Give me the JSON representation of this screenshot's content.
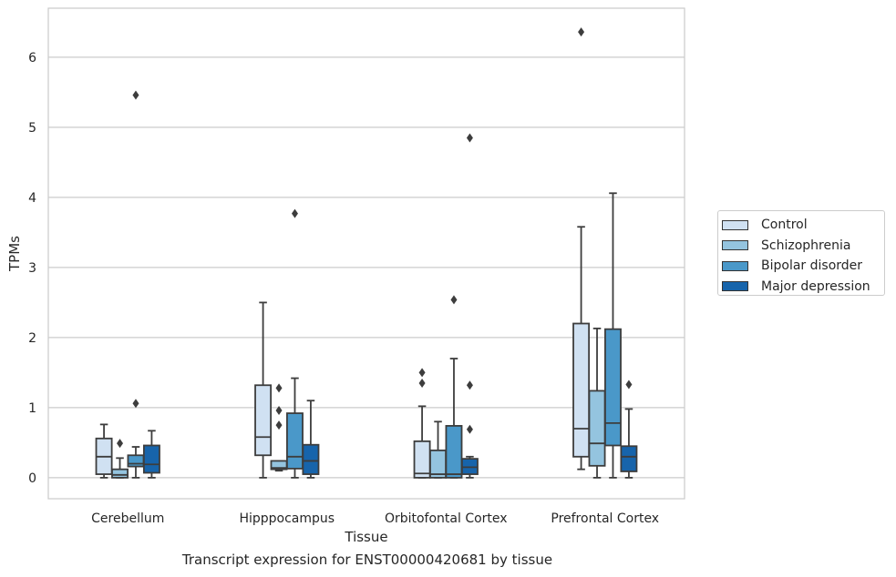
{
  "chart_data": {
    "type": "box",
    "title": "",
    "xlabel": "Tissue",
    "ylabel": "TPMs",
    "caption": "Transcript expression for ENST00000420681 by tissue",
    "categories": [
      "Cerebellum",
      "Hipppocampus",
      "Orbitofontal Cortex",
      "Prefrontal Cortex"
    ],
    "y_ticks": [
      0,
      1,
      2,
      3,
      4,
      5,
      6
    ],
    "ylim": [
      -0.3,
      6.7
    ],
    "grid": "horizontal",
    "legend_position": "right",
    "series": [
      {
        "name": "Control",
        "color": "#d0e1f2",
        "boxes": [
          {
            "whisker_low": 0.0,
            "q1": 0.05,
            "median": 0.3,
            "q3": 0.56,
            "whisker_high": 0.76,
            "outliers": []
          },
          {
            "whisker_low": 0.0,
            "q1": 0.32,
            "median": 0.58,
            "q3": 1.32,
            "whisker_high": 2.5,
            "outliers": []
          },
          {
            "whisker_low": 0.0,
            "q1": 0.0,
            "median": 0.06,
            "q3": 0.52,
            "whisker_high": 1.02,
            "outliers": [
              1.35,
              1.5
            ]
          },
          {
            "whisker_low": 0.12,
            "q1": 0.3,
            "median": 0.7,
            "q3": 2.2,
            "whisker_high": 3.58,
            "outliers": [
              6.36
            ]
          }
        ]
      },
      {
        "name": "Schizophrenia",
        "color": "#94c4df",
        "boxes": [
          {
            "whisker_low": 0.0,
            "q1": 0.0,
            "median": 0.04,
            "q3": 0.12,
            "whisker_high": 0.28,
            "outliers": [
              0.49
            ]
          },
          {
            "whisker_low": 0.1,
            "q1": 0.12,
            "median": 0.14,
            "q3": 0.24,
            "whisker_high": 0.24,
            "outliers": [
              0.75,
              0.96,
              1.28
            ]
          },
          {
            "whisker_low": 0.0,
            "q1": 0.0,
            "median": 0.05,
            "q3": 0.39,
            "whisker_high": 0.8,
            "outliers": []
          },
          {
            "whisker_low": 0.0,
            "q1": 0.17,
            "median": 0.49,
            "q3": 1.24,
            "whisker_high": 2.13,
            "outliers": []
          }
        ]
      },
      {
        "name": "Bipolar disorder",
        "color": "#4a98c9",
        "boxes": [
          {
            "whisker_low": 0.0,
            "q1": 0.16,
            "median": 0.2,
            "q3": 0.32,
            "whisker_high": 0.44,
            "outliers": [
              1.06,
              5.46
            ]
          },
          {
            "whisker_low": 0.0,
            "q1": 0.13,
            "median": 0.3,
            "q3": 0.92,
            "whisker_high": 1.42,
            "outliers": [
              3.77
            ]
          },
          {
            "whisker_low": 0.0,
            "q1": 0.0,
            "median": 0.05,
            "q3": 0.74,
            "whisker_high": 1.7,
            "outliers": [
              2.54
            ]
          },
          {
            "whisker_low": 0.0,
            "q1": 0.46,
            "median": 0.78,
            "q3": 2.12,
            "whisker_high": 4.06,
            "outliers": []
          }
        ]
      },
      {
        "name": "Major depression",
        "color": "#1764ab",
        "boxes": [
          {
            "whisker_low": 0.0,
            "q1": 0.07,
            "median": 0.19,
            "q3": 0.46,
            "whisker_high": 0.67,
            "outliers": []
          },
          {
            "whisker_low": 0.0,
            "q1": 0.05,
            "median": 0.24,
            "q3": 0.47,
            "whisker_high": 1.1,
            "outliers": []
          },
          {
            "whisker_low": 0.0,
            "q1": 0.05,
            "median": 0.15,
            "q3": 0.27,
            "whisker_high": 0.3,
            "outliers": [
              0.69,
              1.32,
              4.85
            ]
          },
          {
            "whisker_low": 0.0,
            "q1": 0.09,
            "median": 0.3,
            "q3": 0.45,
            "whisker_high": 0.98,
            "outliers": [
              1.33
            ]
          }
        ]
      }
    ]
  }
}
